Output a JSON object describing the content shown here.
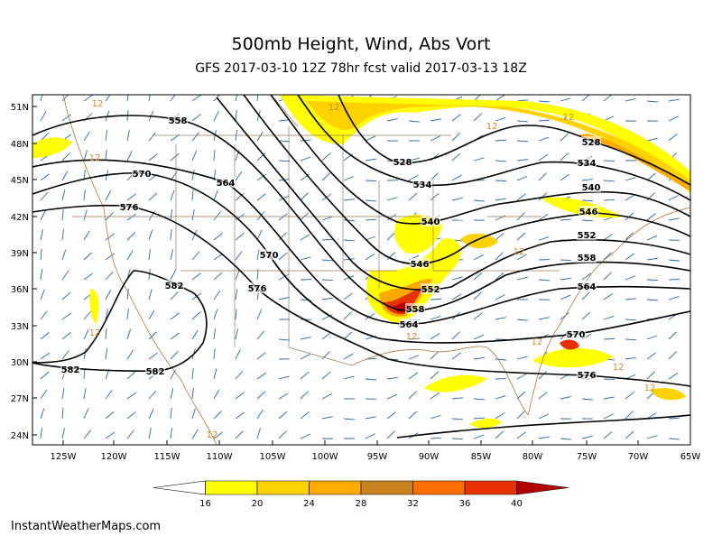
{
  "header": {
    "title": "500mb Height, Wind, Abs Vort",
    "subtitle": "GFS 2017-03-10 12Z 78hr fcst valid 2017-03-13 18Z"
  },
  "map": {
    "lat_labels": [
      "51N",
      "48N",
      "45N",
      "42N",
      "39N",
      "36N",
      "33N",
      "30N",
      "27N",
      "24N"
    ],
    "lon_labels": [
      "125W",
      "120W",
      "115W",
      "110W",
      "105W",
      "100W",
      "95W",
      "90W",
      "85W",
      "80W",
      "75W",
      "70W",
      "65W"
    ],
    "contour_labels": [
      "558",
      "570",
      "564",
      "576",
      "570",
      "576",
      "582",
      "582",
      "582",
      "528",
      "528",
      "534",
      "534",
      "540",
      "540",
      "546",
      "546",
      "552",
      "552",
      "558",
      "558",
      "564",
      "564",
      "570",
      "576"
    ],
    "vort_label": "12"
  },
  "colorbar": {
    "labels": [
      16,
      20,
      24,
      28,
      32,
      36,
      40
    ],
    "colors": [
      "#ffffff",
      "#ffff00",
      "#ffd200",
      "#ffaa00",
      "#c8821e",
      "#ff6e00",
      "#e63200",
      "#b40000"
    ]
  },
  "footer": "InstantWeatherMaps.com"
}
